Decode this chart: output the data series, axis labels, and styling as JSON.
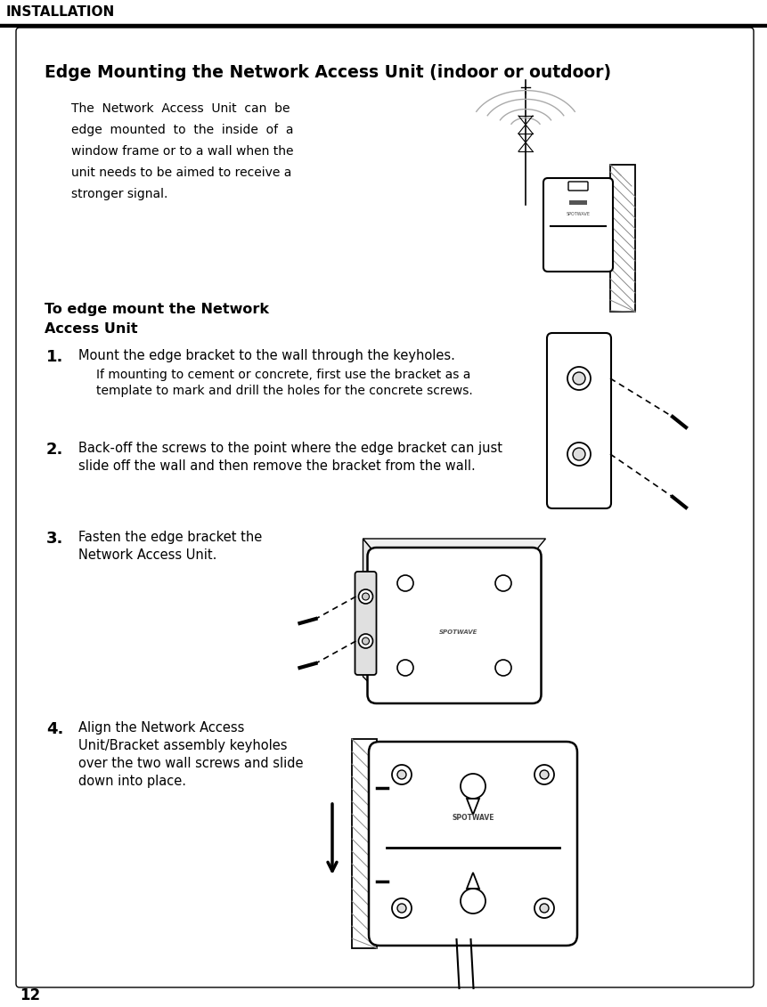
{
  "page_number": "12",
  "header_text": "INSTALLATION",
  "title": "Edge Mounting the Network Access Unit (indoor or outdoor)",
  "intro_lines": [
    "The  Network  Access  Unit  can  be",
    "edge  mounted  to  the  inside  of  a",
    "window frame or to a wall when the",
    "unit needs to be aimed to receive a",
    "stronger signal."
  ],
  "section_line1": "To edge mount the Network",
  "section_line2": "Access Unit",
  "step1_num": "1.",
  "step1_main": "Mount the edge bracket to the wall through the keyholes.",
  "step1_sub1": "If mounting to cement or concrete, first use the bracket as a",
  "step1_sub2": "template to mark and drill the holes for the concrete screws.",
  "step2_num": "2.",
  "step2_main1": "Back-off the screws to the point where the edge bracket can just",
  "step2_main2": "slide off the wall and then remove the bracket from the wall.",
  "step3_num": "3.",
  "step3_main1": "Fasten the edge bracket the",
  "step3_main2": "Network Access Unit.",
  "step4_num": "4.",
  "step4_main1": "Align the Network Access",
  "step4_main2": "Unit/Bracket assembly keyholes",
  "step4_main3": "over the two wall screws and slide",
  "step4_main4": "down into place.",
  "bg_color": "#ffffff",
  "text_color": "#000000",
  "line_color": "#000000",
  "gray_light": "#cccccc",
  "gray_mid": "#999999",
  "gray_dark": "#555555"
}
